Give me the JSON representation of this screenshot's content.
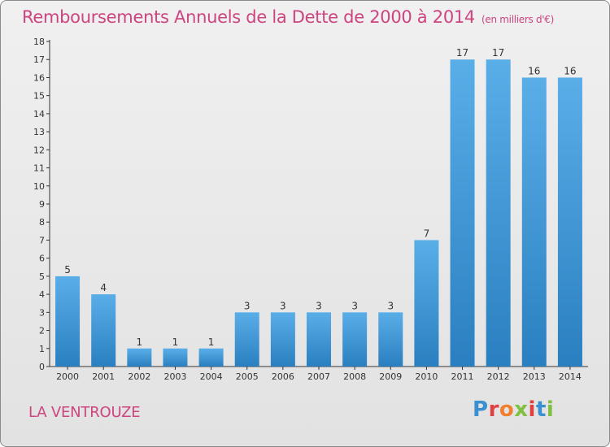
{
  "header": {
    "title": "Remboursements Annuels de la Dette de 2000 à 2014",
    "subtitle": "(en milliers d'€)"
  },
  "footer": {
    "location": "LA VENTROUZE",
    "logo": "Proxiti",
    "logo_colors": [
      "#3a8fd0",
      "#e04040",
      "#f08030",
      "#80c040",
      "#e04040",
      "#3a8fd0",
      "#80c040"
    ]
  },
  "chart_data": {
    "type": "bar",
    "categories": [
      "2000",
      "2001",
      "2002",
      "2003",
      "2004",
      "2005",
      "2006",
      "2007",
      "2008",
      "2009",
      "2010",
      "2011",
      "2012",
      "2013",
      "2014"
    ],
    "values": [
      5,
      4,
      1,
      1,
      1,
      3,
      3,
      3,
      3,
      3,
      7,
      17,
      17,
      16,
      16
    ],
    "ylim": [
      0,
      18
    ],
    "yticks": [
      0,
      1,
      2,
      3,
      4,
      5,
      6,
      7,
      8,
      9,
      10,
      11,
      12,
      13,
      14,
      15,
      16,
      17,
      18
    ],
    "grid": false,
    "bar_color_top": "#5aaee8",
    "bar_color_bottom": "#2a7fc0",
    "title_color": "#cc4480"
  }
}
